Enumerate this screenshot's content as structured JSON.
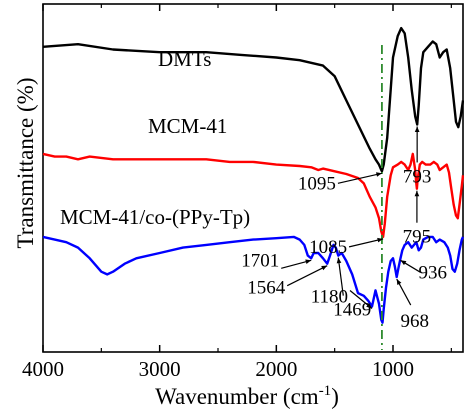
{
  "chart_data": {
    "type": "line",
    "xlabel": "Wavenumber (cm",
    "xlabel_sup": "-1",
    "xlabel_end": ")",
    "ylabel": "Transmittance (%)",
    "xlim": [
      4000,
      400
    ],
    "x_reversed": true,
    "y_ticks_shown": false,
    "grid": false,
    "x_ticks": [
      {
        "value": 4000,
        "label": "4000"
      },
      {
        "value": 3000,
        "label": "3000"
      },
      {
        "value": 2000,
        "label": "2000"
      },
      {
        "value": 1000,
        "label": "1000"
      }
    ],
    "reference_line": {
      "x": 1095,
      "style": "dash-dot",
      "color": "#2e8b2e"
    },
    "series": [
      {
        "name": "DMTs",
        "color": "#000000",
        "points": [
          [
            4000,
            84
          ],
          [
            3700,
            85
          ],
          [
            3400,
            83
          ],
          [
            3000,
            82
          ],
          [
            2600,
            82
          ],
          [
            2300,
            81
          ],
          [
            2000,
            80
          ],
          [
            1800,
            79
          ],
          [
            1600,
            77
          ],
          [
            1500,
            73
          ],
          [
            1400,
            64
          ],
          [
            1300,
            55
          ],
          [
            1200,
            46
          ],
          [
            1150,
            42
          ],
          [
            1120,
            40
          ],
          [
            1100,
            38
          ],
          [
            1095,
            37.5
          ],
          [
            1080,
            40
          ],
          [
            1050,
            50
          ],
          [
            1020,
            68
          ],
          [
            1000,
            80
          ],
          [
            960,
            88
          ],
          [
            930,
            91
          ],
          [
            900,
            89
          ],
          [
            870,
            80
          ],
          [
            840,
            68
          ],
          [
            810,
            58
          ],
          [
            793,
            55
          ],
          [
            780,
            62
          ],
          [
            760,
            76
          ],
          [
            740,
            82
          ],
          [
            700,
            84
          ],
          [
            660,
            86
          ],
          [
            630,
            85
          ],
          [
            600,
            80
          ],
          [
            570,
            82
          ],
          [
            540,
            83
          ],
          [
            510,
            76
          ],
          [
            480,
            64
          ],
          [
            460,
            56
          ],
          [
            440,
            54
          ],
          [
            420,
            58
          ],
          [
            400,
            64
          ]
        ],
        "peaks": [
          {
            "x": 1095,
            "label": "1095"
          },
          {
            "x": 793,
            "label": "793"
          }
        ]
      },
      {
        "name": "MCM-41",
        "color": "#ff0000",
        "points": [
          [
            4000,
            44
          ],
          [
            3900,
            43
          ],
          [
            3800,
            43
          ],
          [
            3700,
            42
          ],
          [
            3600,
            43
          ],
          [
            3400,
            42
          ],
          [
            3200,
            42
          ],
          [
            3000,
            42
          ],
          [
            2800,
            42
          ],
          [
            2600,
            42
          ],
          [
            2400,
            41
          ],
          [
            2200,
            41
          ],
          [
            2000,
            40
          ],
          [
            1800,
            39.5
          ],
          [
            1700,
            39
          ],
          [
            1640,
            38
          ],
          [
            1600,
            38.5
          ],
          [
            1500,
            37.5
          ],
          [
            1400,
            36.5
          ],
          [
            1300,
            35
          ],
          [
            1250,
            33
          ],
          [
            1200,
            28
          ],
          [
            1150,
            24
          ],
          [
            1120,
            20
          ],
          [
            1100,
            15
          ],
          [
            1085,
            13
          ],
          [
            1070,
            18
          ],
          [
            1050,
            28
          ],
          [
            1020,
            36
          ],
          [
            1000,
            39
          ],
          [
            960,
            40
          ],
          [
            930,
            41
          ],
          [
            900,
            40
          ],
          [
            870,
            38
          ],
          [
            850,
            40
          ],
          [
            830,
            44
          ],
          [
            810,
            38
          ],
          [
            800,
            33
          ],
          [
            795,
            31
          ],
          [
            790,
            34
          ],
          [
            770,
            40
          ],
          [
            750,
            41
          ],
          [
            720,
            40
          ],
          [
            680,
            40
          ],
          [
            650,
            41
          ],
          [
            620,
            40
          ],
          [
            600,
            38
          ],
          [
            570,
            39
          ],
          [
            540,
            40
          ],
          [
            520,
            37
          ],
          [
            500,
            31
          ],
          [
            480,
            25
          ],
          [
            460,
            21
          ],
          [
            445,
            20
          ],
          [
            430,
            25
          ],
          [
            410,
            32
          ],
          [
            400,
            36
          ]
        ],
        "peaks": [
          {
            "x": 1085,
            "label": "1085"
          },
          {
            "x": 795,
            "label": "795"
          }
        ]
      },
      {
        "name": "MCM-41/co-(PPy-Tp)",
        "color": "#0000ff",
        "points": [
          [
            4000,
            13
          ],
          [
            3900,
            12
          ],
          [
            3800,
            11
          ],
          [
            3700,
            9
          ],
          [
            3600,
            5
          ],
          [
            3500,
            0
          ],
          [
            3450,
            -1
          ],
          [
            3400,
            0
          ],
          [
            3300,
            3
          ],
          [
            3200,
            5
          ],
          [
            3000,
            7
          ],
          [
            2800,
            9
          ],
          [
            2600,
            10
          ],
          [
            2400,
            11
          ],
          [
            2200,
            12
          ],
          [
            2000,
            12.5
          ],
          [
            1850,
            13
          ],
          [
            1800,
            12
          ],
          [
            1760,
            10
          ],
          [
            1730,
            6
          ],
          [
            1701,
            5
          ],
          [
            1680,
            7
          ],
          [
            1640,
            7
          ],
          [
            1600,
            5
          ],
          [
            1564,
            3
          ],
          [
            1540,
            6
          ],
          [
            1510,
            10
          ],
          [
            1490,
            9
          ],
          [
            1469,
            6
          ],
          [
            1440,
            7
          ],
          [
            1400,
            4
          ],
          [
            1350,
            -1
          ],
          [
            1300,
            -8
          ],
          [
            1250,
            -9
          ],
          [
            1210,
            -11
          ],
          [
            1180,
            -13
          ],
          [
            1150,
            -7
          ],
          [
            1120,
            -12
          ],
          [
            1100,
            -18
          ],
          [
            1090,
            -19
          ],
          [
            1080,
            -14
          ],
          [
            1060,
            -6
          ],
          [
            1040,
            0
          ],
          [
            1020,
            4
          ],
          [
            1000,
            5
          ],
          [
            985,
            2
          ],
          [
            968,
            -2
          ],
          [
            950,
            2
          ],
          [
            936,
            5
          ],
          [
            920,
            8
          ],
          [
            900,
            10
          ],
          [
            870,
            11
          ],
          [
            840,
            9
          ],
          [
            820,
            10
          ],
          [
            800,
            11
          ],
          [
            780,
            8
          ],
          [
            760,
            9
          ],
          [
            740,
            12
          ],
          [
            700,
            13
          ],
          [
            660,
            13
          ],
          [
            630,
            11
          ],
          [
            600,
            12
          ],
          [
            560,
            11
          ],
          [
            530,
            9
          ],
          [
            510,
            6
          ],
          [
            490,
            1
          ],
          [
            470,
            0
          ],
          [
            450,
            3
          ],
          [
            430,
            8
          ],
          [
            410,
            12
          ],
          [
            400,
            13
          ]
        ],
        "peaks": [
          {
            "x": 1701,
            "label": "1701"
          },
          {
            "x": 1564,
            "label": "1564"
          },
          {
            "x": 1469,
            "label": "1469"
          },
          {
            "x": 1180,
            "label": "1180"
          },
          {
            "x": 968,
            "label": "968"
          },
          {
            "x": 936,
            "label": "936"
          }
        ]
      }
    ]
  }
}
